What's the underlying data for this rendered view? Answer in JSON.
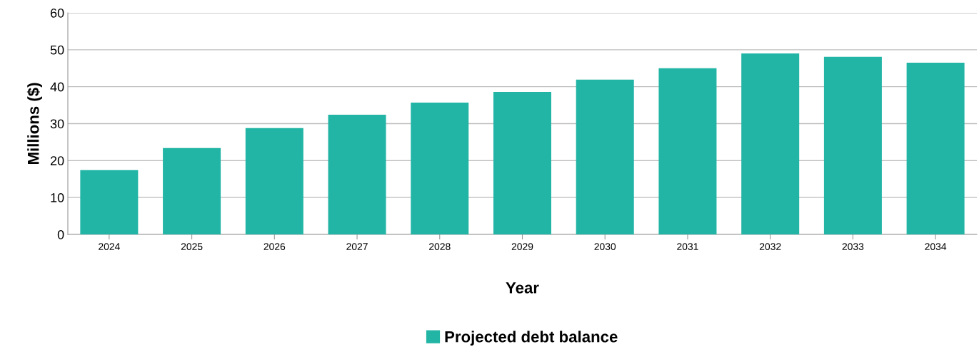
{
  "chart_data": {
    "type": "bar",
    "xlabel": "Year",
    "ylabel": "Millions ($)",
    "categories": [
      "2024",
      "2025",
      "2026",
      "2027",
      "2028",
      "2029",
      "2030",
      "2031",
      "2032",
      "2033",
      "2034"
    ],
    "series": [
      {
        "name": "Projected debt balance",
        "color": "#22b5a5",
        "values": [
          17.4,
          23.4,
          28.8,
          32.4,
          35.7,
          38.6,
          41.9,
          45.0,
          49.0,
          48.1,
          46.5
        ]
      }
    ],
    "ylim": [
      0,
      60
    ],
    "yticks": [
      0,
      10,
      20,
      30,
      40,
      50,
      60
    ],
    "grid": "y",
    "legend": "bottom"
  }
}
